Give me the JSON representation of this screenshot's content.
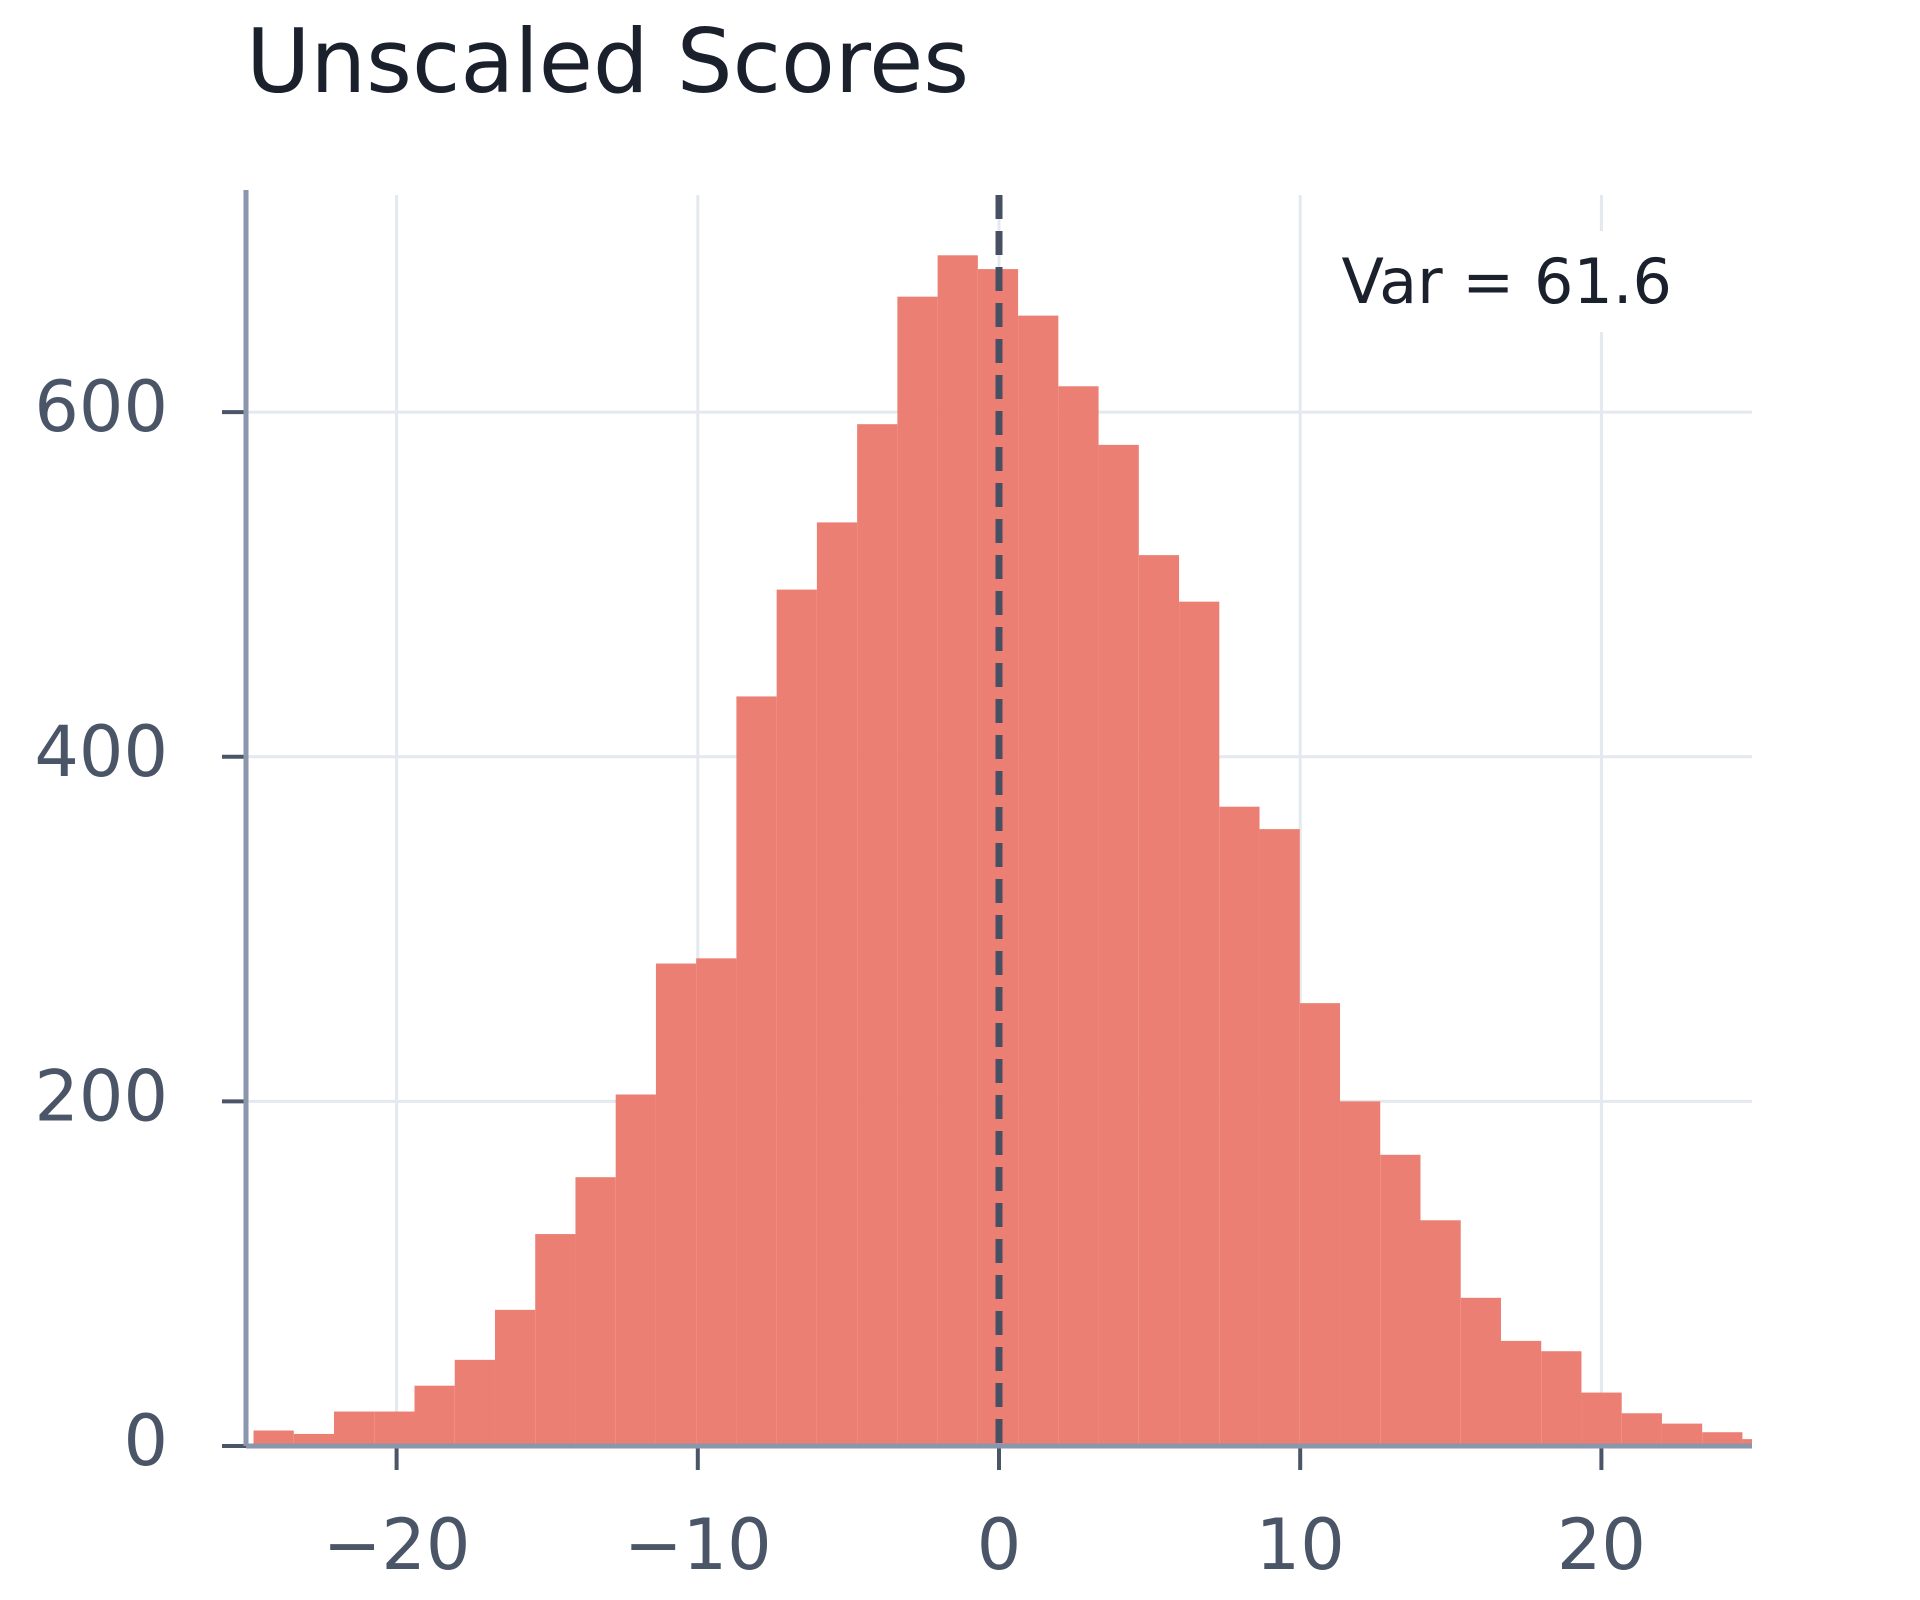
{
  "chart_data": {
    "type": "histogram",
    "title": "Unscaled Scores",
    "bins": [
      -24.75,
      -23.414,
      -22.078,
      -20.742,
      -19.406,
      -18.07,
      -16.734,
      -15.398,
      -14.062,
      -12.726,
      -11.39,
      -10.054,
      -8.718,
      -7.382,
      -6.046,
      -4.71,
      -3.374,
      -2.038,
      -0.702,
      0.634,
      1.97,
      3.306,
      4.642,
      5.978,
      7.314,
      8.65,
      9.986,
      11.322,
      12.658,
      13.994,
      15.33,
      16.666,
      18.002,
      19.338,
      20.674,
      22.01,
      23.346,
      24.682,
      26.018
    ],
    "values": [
      9,
      7,
      20,
      20,
      35,
      50,
      79,
      123,
      156,
      204,
      280,
      283,
      435,
      497,
      536,
      593,
      667,
      691,
      683,
      656,
      615,
      581,
      517,
      490,
      371,
      358,
      257,
      200,
      169,
      131,
      86,
      61,
      55,
      31,
      19,
      13,
      8,
      4
    ],
    "color": "#ec7f73",
    "xlim": [
      -25,
      25
    ],
    "xticks": [
      {
        "value": -20,
        "label": "−20"
      },
      {
        "value": -10,
        "label": "−10"
      },
      0,
      10,
      20
    ],
    "ylim": [
      0,
      726
    ],
    "yticks": [
      0,
      200,
      400,
      600
    ],
    "grid": true,
    "vline": 0,
    "annotation": "Var = 61.6"
  }
}
